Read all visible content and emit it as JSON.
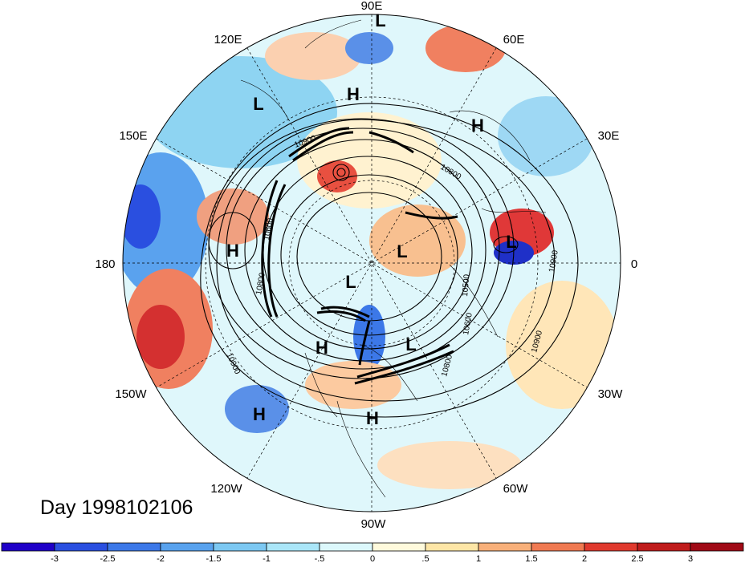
{
  "longitude_labels": [
    "90E",
    "60E",
    "30E",
    "0",
    "30W",
    "60W",
    "90W",
    "120W",
    "150W",
    "180",
    "150E",
    "120E"
  ],
  "pressure_systems": [
    {
      "name": "L-top",
      "text": "L"
    },
    {
      "name": "L-120e",
      "text": "L"
    },
    {
      "name": "H-90e",
      "text": "H"
    },
    {
      "name": "H-45e",
      "text": "H"
    },
    {
      "name": "H-170w",
      "text": "H"
    },
    {
      "name": "L-pole-right",
      "text": "L"
    },
    {
      "name": "L-atlantic",
      "text": "L"
    },
    {
      "name": "L-pole",
      "text": "L"
    },
    {
      "name": "H-westcanada",
      "text": "H"
    },
    {
      "name": "L-hudson",
      "text": "L"
    },
    {
      "name": "H-150w",
      "text": "H"
    },
    {
      "name": "H-usa",
      "text": "H"
    }
  ],
  "contour_labels": [
    "10900",
    "10600",
    "10800",
    "10900",
    "10800",
    "10600",
    "10800",
    "10900",
    "10500",
    "10900"
  ],
  "day_label": "Day 1998102106",
  "colorbar": {
    "ticks": [
      "-3",
      "-2.5",
      "-2",
      "-1.5",
      "-1",
      "-.5",
      "0",
      ".5",
      "1",
      "1.5",
      "2",
      "2.5",
      "3"
    ],
    "colors": [
      "#1f00c8",
      "#2a4fe0",
      "#3c78e8",
      "#58a2ee",
      "#7cc8f2",
      "#aae6f8",
      "#dcf8fc",
      "#fffadc",
      "#fee6a6",
      "#f8b07a",
      "#f07a52",
      "#e0392e",
      "#c01c1c",
      "#a00a16"
    ]
  }
}
